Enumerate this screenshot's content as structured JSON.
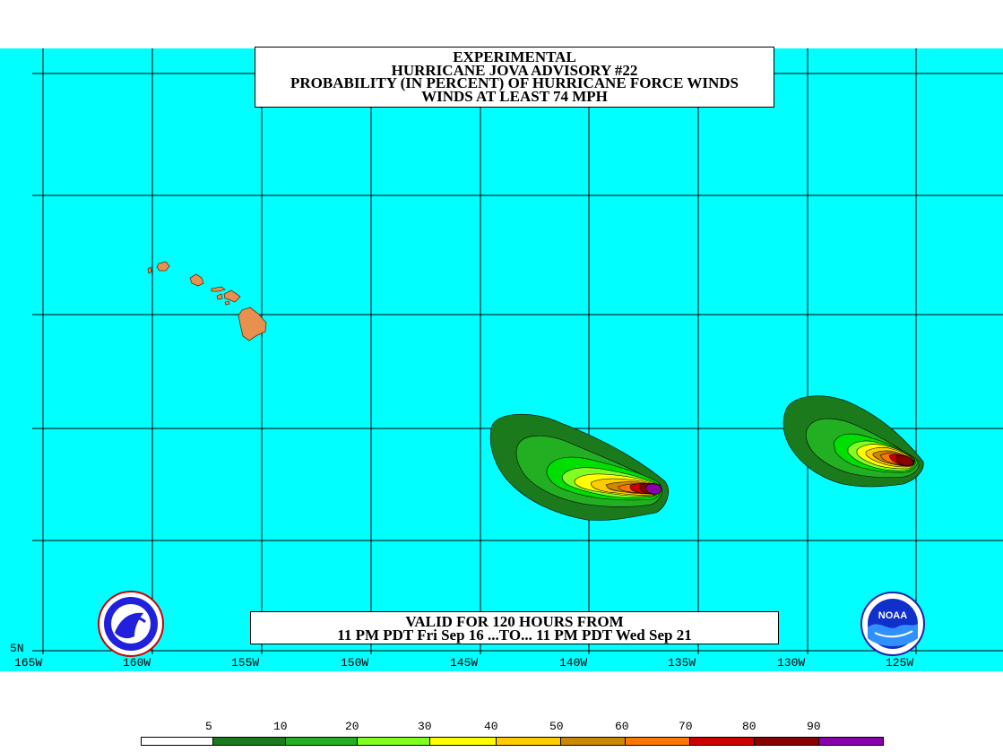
{
  "title": {
    "line1": "EXPERIMENTAL",
    "line2": "HURRICANE JOVA ADVISORY #22",
    "line3": "PROBABILITY (IN PERCENT) OF HURRICANE FORCE WINDS",
    "line4": "WINDS AT LEAST 74 MPH"
  },
  "valid": {
    "line1": "VALID FOR 120 HOURS FROM",
    "line2": "11 PM PDT Fri Sep 16 ...TO... 11 PM PDT Wed Sep 21"
  },
  "axes": {
    "lon_labels": [
      "165W",
      "160W",
      "155W",
      "150W",
      "145W",
      "140W",
      "135W",
      "130W",
      "125W"
    ],
    "lat_label": "5N"
  },
  "colors": {
    "ocean": "#00ffff",
    "land": "#e89050",
    "grid": "#000000"
  },
  "legend": {
    "labels": [
      "5",
      "10",
      "20",
      "30",
      "40",
      "50",
      "60",
      "70",
      "80",
      "90"
    ],
    "colors": [
      "#ffffff",
      "#1b7a1b",
      "#22b022",
      "#00e000",
      "#80ff20",
      "#ffff00",
      "#ffcc00",
      "#cc8800",
      "#ff7700",
      "#cc0000",
      "#880000",
      "#8800aa"
    ]
  },
  "logos": {
    "left": "nws-logo",
    "right": "noaa-logo",
    "noaa_text": "NOAA"
  }
}
